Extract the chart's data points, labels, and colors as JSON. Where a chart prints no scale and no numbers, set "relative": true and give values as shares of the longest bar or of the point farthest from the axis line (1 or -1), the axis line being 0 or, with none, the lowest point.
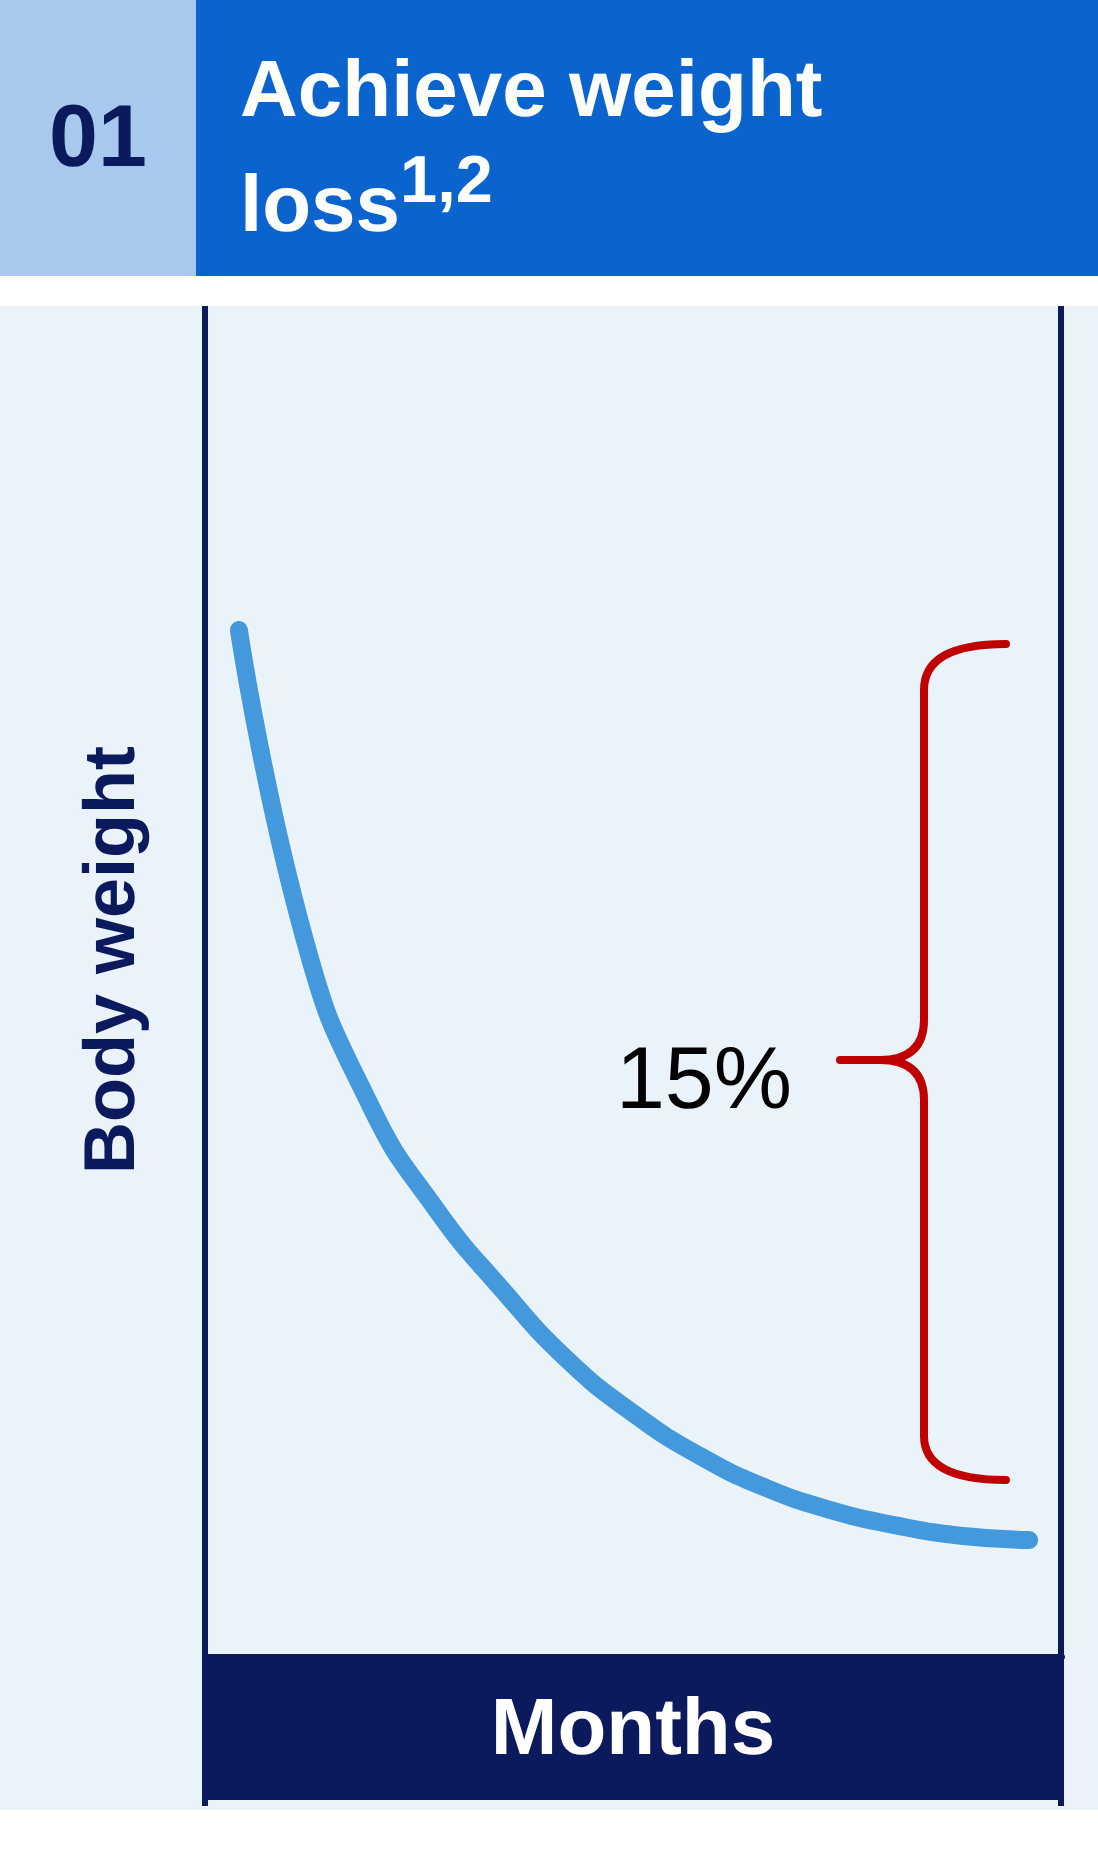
{
  "chart_data": {
    "type": "line",
    "title": "Achieve weight loss$^{1,2}$",
    "xlabel": "Months",
    "ylabel": "Body weight",
    "relative": true,
    "categories": [
      null,
      null,
      null,
      null,
      null,
      null,
      null,
      null,
      null,
      null,
      null,
      null,
      null
    ],
    "series": [
      {
        "color": "#4499dd",
        "values": [
          1,
          0.698,
          0.536,
          0.435,
          0.357,
          0.288,
          0.236,
          0.195,
          0.164,
          0.142,
          0.127,
          0.117,
          0.113
        ]
      }
    ],
    "annotations": [
      "01",
      "15%"
    ]
  }
}
